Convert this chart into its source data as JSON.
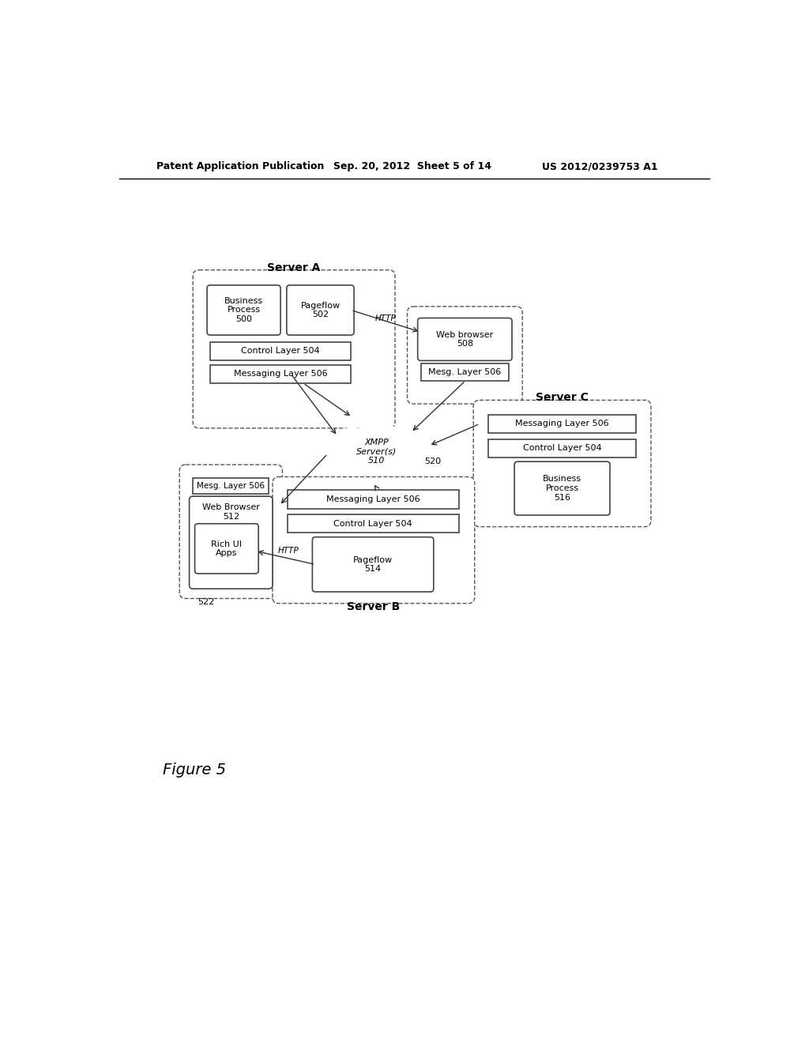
{
  "header_left": "Patent Application Publication",
  "header_mid": "Sep. 20, 2012  Sheet 5 of 14",
  "header_right": "US 2012/0239753 A1",
  "figure_label": "Figure 5",
  "background_color": "#ffffff",
  "page_width": 10.24,
  "page_height": 13.2
}
